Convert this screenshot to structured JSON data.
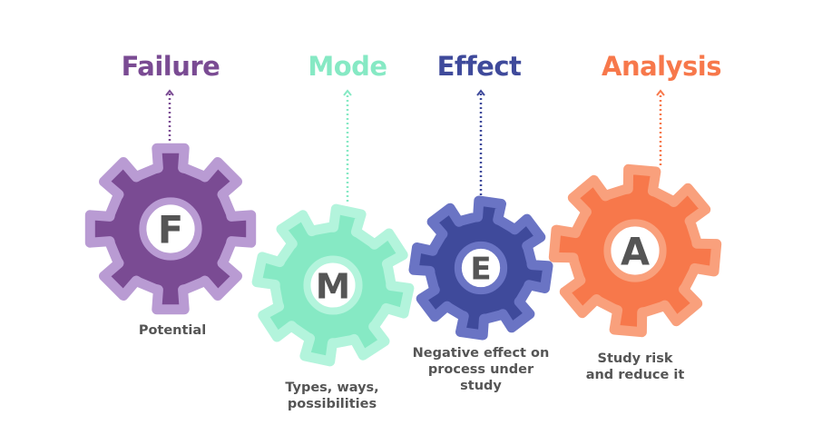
{
  "gears": [
    {
      "letter": "F",
      "title": "Failure",
      "description": [
        "Potential"
      ],
      "color": "#7a4b93",
      "light": "#b99bd3"
    },
    {
      "letter": "M",
      "title": "Mode",
      "description": [
        "Types, ways,",
        "possibilities"
      ],
      "color": "#86e9c4",
      "light": "#b3f4dc"
    },
    {
      "letter": "E",
      "title": "Effect",
      "description": [
        "Negative effect on",
        "process under",
        "study"
      ],
      "color": "#3f4a9b",
      "light": "#6a74c4"
    },
    {
      "letter": "A",
      "title": "Analysis",
      "description": [
        "Study risk",
        "and reduce it"
      ],
      "color": "#f7784b",
      "light": "#f9a07c"
    }
  ],
  "letter_color": "#555555"
}
